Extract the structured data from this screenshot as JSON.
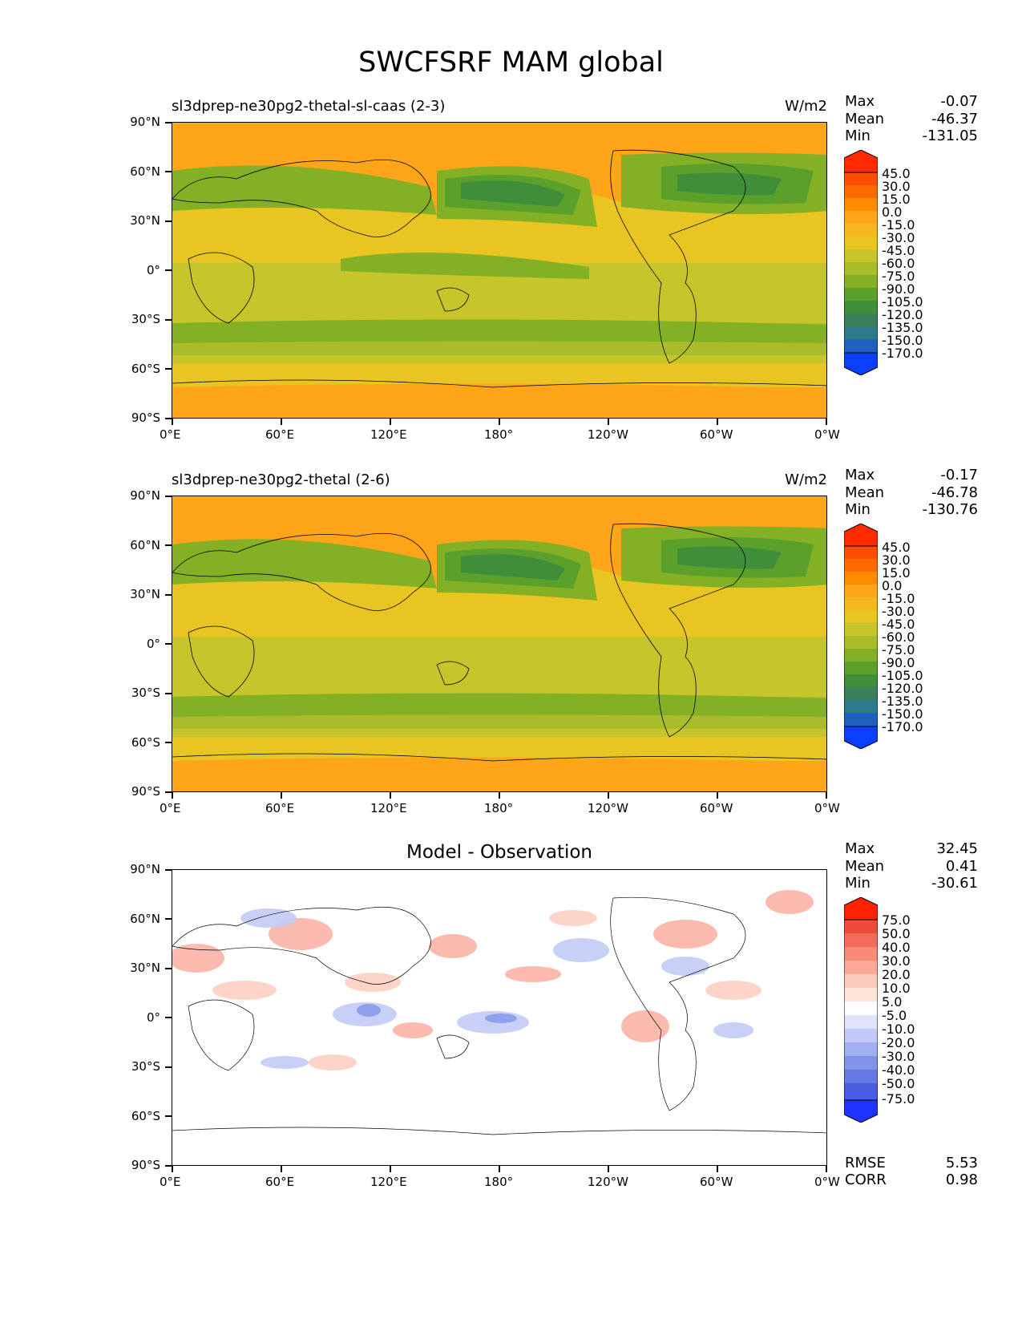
{
  "figure_title": "SWCFSRF MAM global",
  "panels": [
    {
      "title_left": "sl3dprep-ne30pg2-thetal-sl-caas (2-3)",
      "units": "W/m2",
      "stats": {
        "max_label": "Max",
        "max": "-0.07",
        "mean_label": "Mean",
        "mean": "-46.37",
        "min_label": "Min",
        "min": "-131.05"
      },
      "colorbar_labels": [
        "45.0",
        "30.0",
        "15.0",
        "0.0",
        "-15.0",
        "-30.0",
        "-45.0",
        "-60.0",
        "-75.0",
        "-90.0",
        "-105.0",
        "-120.0",
        "-135.0",
        "-150.0",
        "-170.0"
      ]
    },
    {
      "title_left": "sl3dprep-ne30pg2-thetal (2-6)",
      "units": "W/m2",
      "stats": {
        "max_label": "Max",
        "max": "-0.17",
        "mean_label": "Mean",
        "mean": "-46.78",
        "min_label": "Min",
        "min": "-130.76"
      },
      "colorbar_labels": [
        "45.0",
        "30.0",
        "15.0",
        "0.0",
        "-15.0",
        "-30.0",
        "-45.0",
        "-60.0",
        "-75.0",
        "-90.0",
        "-105.0",
        "-120.0",
        "-135.0",
        "-150.0",
        "-170.0"
      ]
    },
    {
      "title_center": "Model - Observation",
      "stats": {
        "max_label": "Max",
        "max": "32.45",
        "mean_label": "Mean",
        "mean": "0.41",
        "min_label": "Min",
        "min": "-30.61"
      },
      "colorbar_labels": [
        "75.0",
        "50.0",
        "40.0",
        "30.0",
        "20.0",
        "10.0",
        "5.0",
        "-5.0",
        "-10.0",
        "-20.0",
        "-30.0",
        "-40.0",
        "-50.0",
        "-75.0"
      ],
      "rmse_label": "RMSE",
      "rmse": "5.53",
      "corr_label": "CORR",
      "corr": "0.98"
    }
  ],
  "axes": {
    "y_ticks": [
      "90°N",
      "60°N",
      "30°N",
      "0°",
      "30°S",
      "60°S",
      "90°S"
    ],
    "x_ticks": [
      "0°E",
      "60°E",
      "120°E",
      "180°",
      "120°W",
      "60°W",
      "0°W"
    ]
  },
  "colors": {
    "model_scale": [
      "#ff2a00",
      "#ff4d00",
      "#ff6a00",
      "#ff8c00",
      "#ffa51a",
      "#f5b81c",
      "#e8c520",
      "#c6c62a",
      "#a9bd2a",
      "#84b026",
      "#5aa02a",
      "#3f8f3a",
      "#3a7f5a",
      "#2e7a8a",
      "#1f5fc0",
      "#0a3fff"
    ],
    "diff_scale": [
      "#ff2200",
      "#f04a3a",
      "#f56a5a",
      "#f88a7a",
      "#fbaa9a",
      "#fccaba",
      "#fee3da",
      "#ffffff",
      "#dfe4fb",
      "#c2cbf7",
      "#a2b0f1",
      "#8393ea",
      "#6679e3",
      "#4a5de0",
      "#1e33ff"
    ]
  },
  "chart_data": [
    {
      "type": "heatmap",
      "title": "sl3dprep-ne30pg2-thetal-sl-caas (2-3)",
      "units": "W/m2",
      "x_ticks": [
        "0°E",
        "60°E",
        "120°E",
        "180°",
        "120°W",
        "60°W",
        "0°W"
      ],
      "y_ticks": [
        "90°N",
        "60°N",
        "30°N",
        "0°",
        "30°S",
        "60°S",
        "90°S"
      ],
      "xlim": [
        0,
        360
      ],
      "ylim": [
        -90,
        90
      ],
      "stats": {
        "max": -0.07,
        "mean": -46.37,
        "min": -131.05
      },
      "levels": [
        45.0,
        30.0,
        15.0,
        0.0,
        -15.0,
        -30.0,
        -45.0,
        -60.0,
        -75.0,
        -90.0,
        -105.0,
        -120.0,
        -135.0,
        -150.0,
        -170.0
      ]
    },
    {
      "type": "heatmap",
      "title": "sl3dprep-ne30pg2-thetal (2-6)",
      "units": "W/m2",
      "x_ticks": [
        "0°E",
        "60°E",
        "120°E",
        "180°",
        "120°W",
        "60°W",
        "0°W"
      ],
      "y_ticks": [
        "90°N",
        "60°N",
        "30°N",
        "0°",
        "30°S",
        "60°S",
        "90°S"
      ],
      "xlim": [
        0,
        360
      ],
      "ylim": [
        -90,
        90
      ],
      "stats": {
        "max": -0.17,
        "mean": -46.78,
        "min": -130.76
      },
      "levels": [
        45.0,
        30.0,
        15.0,
        0.0,
        -15.0,
        -30.0,
        -45.0,
        -60.0,
        -75.0,
        -90.0,
        -105.0,
        -120.0,
        -135.0,
        -150.0,
        -170.0
      ]
    },
    {
      "type": "heatmap",
      "title": "Model - Observation",
      "x_ticks": [
        "0°E",
        "60°E",
        "120°E",
        "180°",
        "120°W",
        "60°W",
        "0°W"
      ],
      "y_ticks": [
        "90°N",
        "60°N",
        "30°N",
        "0°",
        "30°S",
        "60°S",
        "90°S"
      ],
      "xlim": [
        0,
        360
      ],
      "ylim": [
        -90,
        90
      ],
      "stats": {
        "max": 32.45,
        "mean": 0.41,
        "min": -30.61,
        "rmse": 5.53,
        "corr": 0.98
      },
      "levels": [
        75.0,
        50.0,
        40.0,
        30.0,
        20.0,
        10.0,
        5.0,
        -5.0,
        -10.0,
        -20.0,
        -30.0,
        -40.0,
        -50.0,
        -75.0
      ]
    }
  ]
}
